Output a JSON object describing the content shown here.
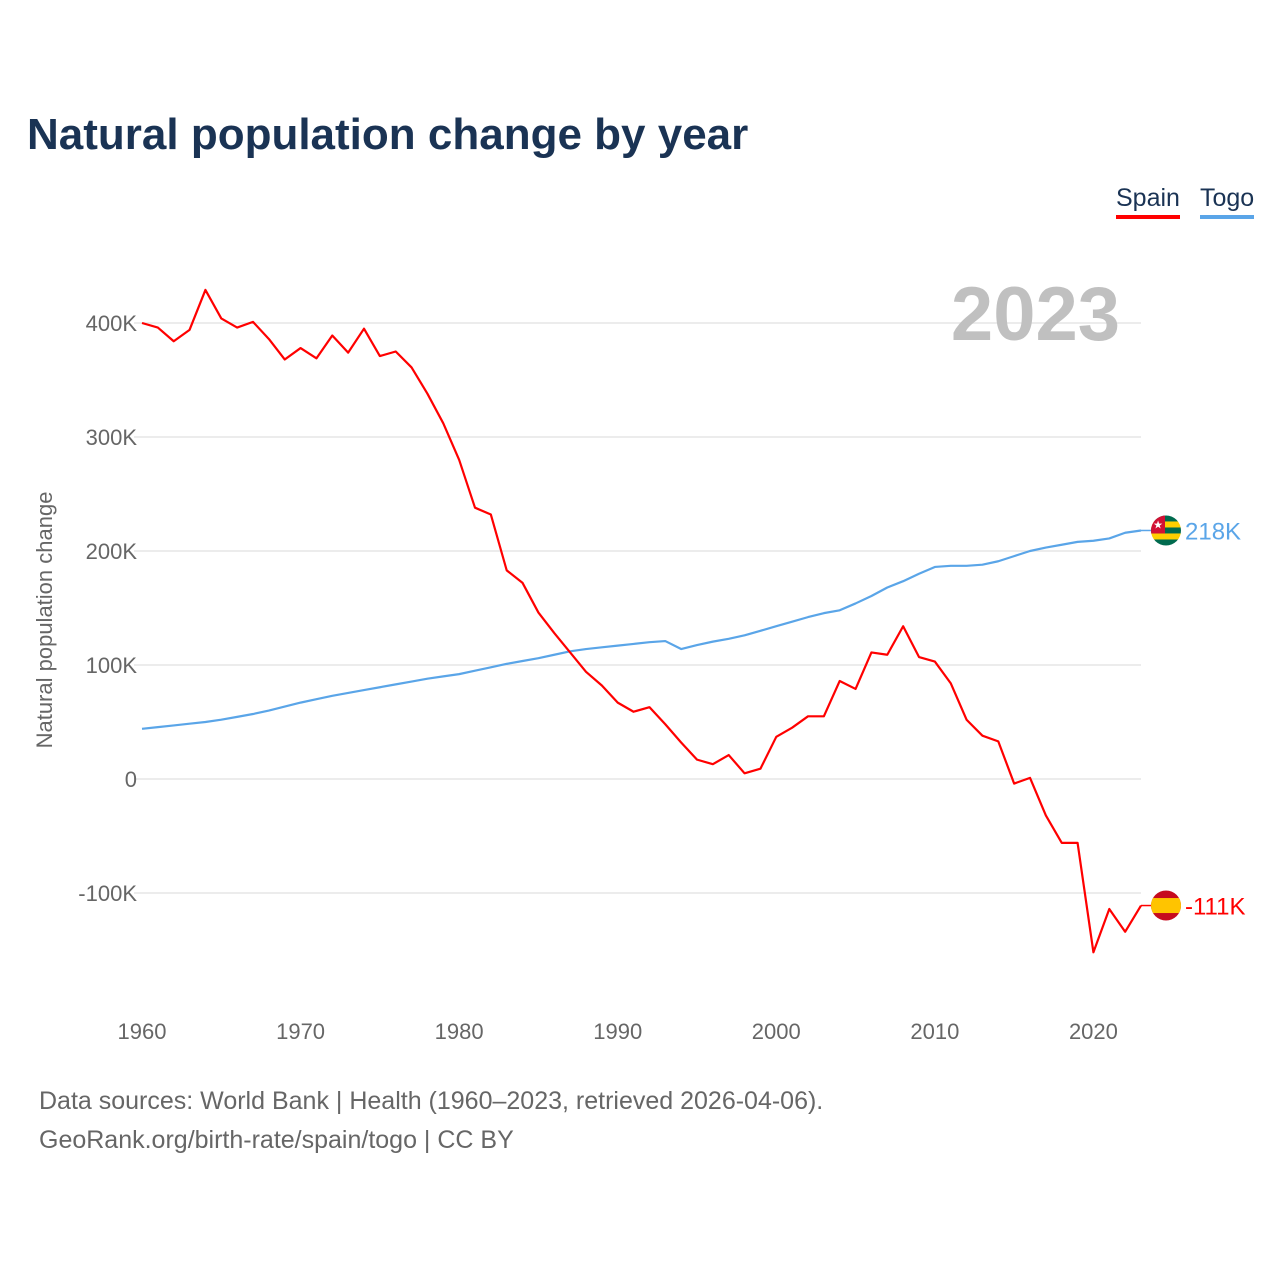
{
  "title": "Natural population change by year",
  "footer": {
    "line1": "Data sources: World Bank | Health (1960–2023, retrieved 2026-04-06).",
    "line2": "GeoRank.org/birth-rate/spain/togo | CC BY"
  },
  "chart_data": {
    "type": "line",
    "title": "Natural population change by year",
    "ylabel": "Natural population change",
    "xlabel": "",
    "year_label": "2023",
    "xlim": [
      1960,
      2023
    ],
    "ylim": [
      -190000,
      440000
    ],
    "x_ticks": [
      1960,
      1970,
      1980,
      1990,
      2000,
      2010,
      2020
    ],
    "y_ticks": [
      {
        "v": 400000,
        "label": "400K"
      },
      {
        "v": 300000,
        "label": "300K"
      },
      {
        "v": 200000,
        "label": "200K"
      },
      {
        "v": 100000,
        "label": "100K"
      },
      {
        "v": 0,
        "label": "0"
      },
      {
        "v": -100000,
        "label": "-100K"
      }
    ],
    "grid": true,
    "legend": "top-right",
    "x_start": 1960,
    "series": [
      {
        "name": "Spain",
        "color": "#ff0000",
        "end_label": "-111K",
        "flag": "spain-flag",
        "values": [
          400000,
          396000,
          384000,
          394000,
          429000,
          404000,
          396000,
          401000,
          386000,
          368000,
          378000,
          369000,
          389000,
          374000,
          395000,
          371000,
          375000,
          361000,
          338000,
          312000,
          280000,
          238000,
          232000,
          183000,
          172000,
          146000,
          128000,
          111000,
          94000,
          82000,
          67000,
          59000,
          63000,
          48000,
          32000,
          17000,
          13000,
          21000,
          5000,
          9000,
          37000,
          45000,
          55000,
          55000,
          86000,
          79000,
          111000,
          109000,
          134000,
          107000,
          103000,
          84000,
          52000,
          38000,
          33000,
          -4000,
          1000,
          -32000,
          -56000,
          -56000,
          -152000,
          -114000,
          -134000,
          -111000
        ]
      },
      {
        "name": "Togo",
        "color": "#5aa5e8",
        "end_label": "218K",
        "flag": "togo-flag",
        "values": [
          44000,
          45500,
          47000,
          48500,
          50000,
          52000,
          54500,
          57000,
          60000,
          63500,
          67000,
          70000,
          73000,
          75500,
          78000,
          80500,
          83000,
          85500,
          88000,
          90000,
          92000,
          95000,
          98000,
          101000,
          103500,
          106000,
          109000,
          112000,
          114000,
          115500,
          117000,
          118500,
          120000,
          121000,
          114000,
          117500,
          120500,
          123000,
          126000,
          130000,
          134000,
          138000,
          142000,
          145500,
          148000,
          154000,
          160500,
          168000,
          173500,
          180000,
          186000,
          187000,
          187000,
          188000,
          191000,
          195500,
          200000,
          203000,
          205500,
          208000,
          209000,
          211000,
          216000,
          218000
        ]
      }
    ]
  }
}
